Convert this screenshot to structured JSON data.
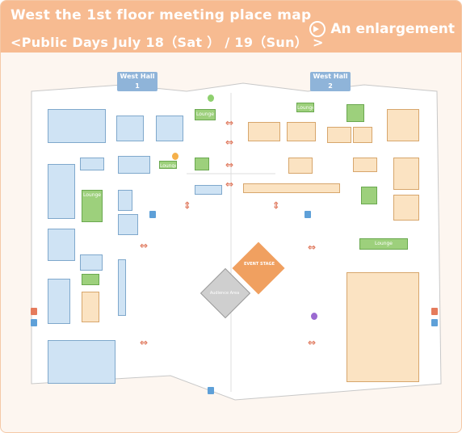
{
  "header": {
    "title": "West the 1st floor meeting place map",
    "subtitle": "<Public Days July 18（Sat ） / 19（Sun） >",
    "enlarge_label": "An enlargement"
  },
  "halls": {
    "west1": "West Hall 1",
    "west2": "West Hall 2"
  },
  "areas": {
    "event_stage": "EVENT STAGE",
    "audience_area": "Audience Area",
    "lounge": "Lounge"
  },
  "colors": {
    "header_bg": "#f7bb91",
    "hall_tab": "#8fb4d9",
    "booth_blue": "#cfe3f4",
    "booth_tan": "#fbe3c2",
    "lounge_green": "#9dd07c",
    "arrow": "#e07a5f",
    "stage": "#f0a060"
  },
  "icons": {
    "enlarge": "circle-arrow-right-icon",
    "arrow": "double-arrow-icon",
    "restroom": "restroom-icon",
    "info": "info-icon"
  }
}
